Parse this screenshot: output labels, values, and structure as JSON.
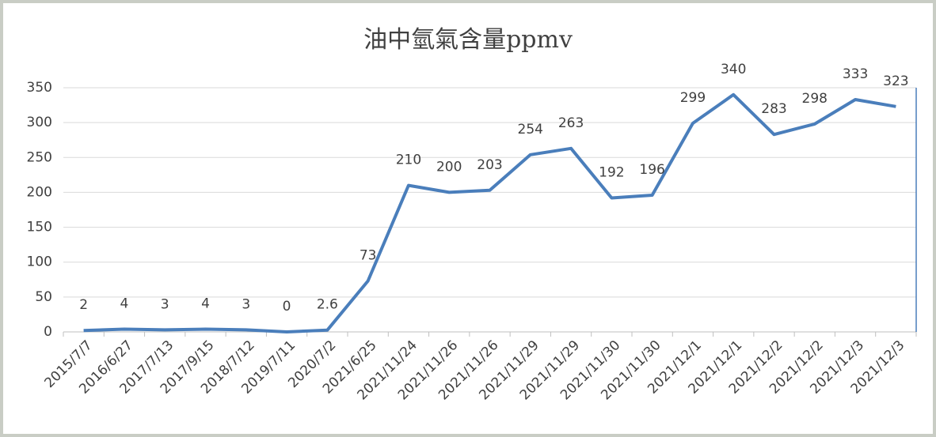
{
  "chart_data": {
    "type": "line",
    "title": "油中氫氣含量ppmv",
    "categories": [
      "2015/7/7",
      "2016/6/27",
      "2017/7/13",
      "2017/9/15",
      "2018/7/12",
      "2019/7/11",
      "2020/7/2",
      "2021/6/25",
      "2021/11/24",
      "2021/11/26",
      "2021/11/26",
      "2021/11/29",
      "2021/11/29",
      "2021/11/30",
      "2021/11/30",
      "2021/12/1",
      "2021/12/1",
      "2021/12/2",
      "2021/12/2",
      "2021/12/3",
      "2021/12/3"
    ],
    "series": [
      {
        "color": "#4a7ebb",
        "values": [
          2,
          4,
          3,
          4,
          3,
          0,
          2.6,
          73,
          210,
          200,
          203,
          254,
          263,
          192,
          196,
          299,
          340,
          283,
          298,
          333,
          323
        ]
      }
    ],
    "ylim": [
      0,
      350
    ],
    "yticks": [
      0,
      50,
      100,
      150,
      200,
      250,
      300,
      350
    ],
    "grid": true
  }
}
